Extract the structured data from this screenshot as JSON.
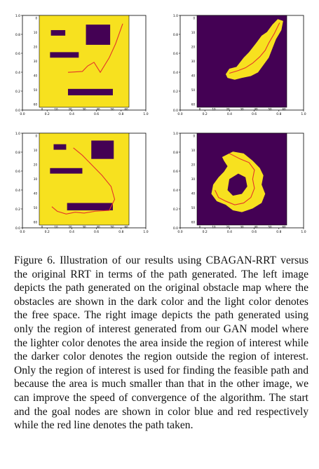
{
  "colors": {
    "free_space": "#f7e11f",
    "obstacle": "#440154",
    "path": "#e4352a",
    "frame": "#000000"
  },
  "panel_axes": {
    "outer_ticks_y": [
      "0.0",
      "0.2",
      "0.4",
      "0.6",
      "0.8",
      "1.0"
    ],
    "outer_ticks_x": [
      "0.0",
      "0.2",
      "0.4",
      "0.6",
      "0.8",
      "1.0"
    ],
    "inner_ticks_y": [
      "0",
      "10",
      "20",
      "30",
      "40",
      "50",
      "60"
    ],
    "inner_ticks_x": [
      "0",
      "10",
      "20",
      "30",
      "40",
      "50",
      "60"
    ]
  },
  "panels": [
    {
      "id": "top-left",
      "kind": "original_map"
    },
    {
      "id": "top-right",
      "kind": "region_of_interest"
    },
    {
      "id": "bottom-left",
      "kind": "original_map"
    },
    {
      "id": "bottom-right",
      "kind": "region_of_interest"
    }
  ],
  "caption": {
    "label": "Figure 6.",
    "text": "Illustration of our results using CBAGAN-RRT versus the original RRT in terms of the path generated. The left image depicts the path generated on the original obstacle map where the obstacles are shown in the dark color and the light color denotes the free space. The right image depicts the path generated using only the region of interest generated from our GAN model where the lighter color denotes the area inside the region of interest while the darker color denotes the region outside the region of interest. Only the region of interest is used for finding the feasible path and because the area is much smaller than that in the other image, we can improve the speed of convergence of the algorithm. The start and the goal nodes are shown in color blue and red respectively while the red line denotes the path taken."
  }
}
